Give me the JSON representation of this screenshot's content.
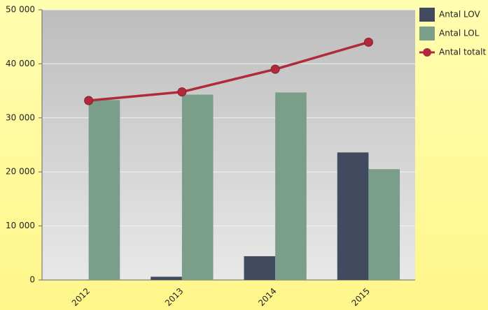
{
  "chart_data": {
    "type": "bar",
    "categories": [
      "2012",
      "2013",
      "2014",
      "2015"
    ],
    "series": [
      {
        "name": "Antal LOV",
        "type": "bar",
        "color": "#414a5e",
        "values": [
          0,
          600,
          4400,
          23600
        ]
      },
      {
        "name": "Antal LOL",
        "type": "bar",
        "color": "#7a9e89",
        "values": [
          33300,
          34300,
          34700,
          20500
        ]
      },
      {
        "name": "Antal totalt",
        "type": "line",
        "color": "#b02a3c",
        "values": [
          33200,
          34800,
          39000,
          44000
        ]
      }
    ],
    "ylim": [
      0,
      50000
    ],
    "yticks": [
      {
        "value": 0,
        "label": "0"
      },
      {
        "value": 10000,
        "label": "10 000"
      },
      {
        "value": 20000,
        "label": "20 000"
      },
      {
        "value": 30000,
        "label": "30 000"
      },
      {
        "value": 40000,
        "label": "40 000"
      },
      {
        "value": 50000,
        "label": "50 000"
      }
    ],
    "grid": true
  }
}
